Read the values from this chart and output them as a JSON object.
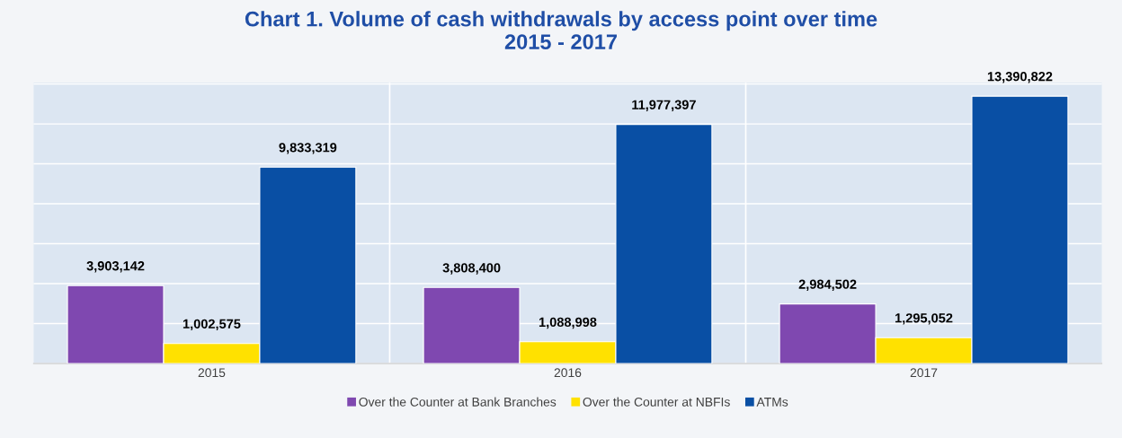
{
  "chart_data": {
    "type": "bar",
    "title": "Chart 1. Volume of cash withdrawals by access point over time\n2015 - 2017",
    "categories": [
      "2015",
      "2016",
      "2017"
    ],
    "series": [
      {
        "name": "Over the Counter at Bank Branches",
        "color": "#7f48b0",
        "values": [
          3903142,
          3808400,
          2984502
        ],
        "value_labels": [
          "3,903,142",
          "3,808,400",
          "2,984,502"
        ]
      },
      {
        "name": "Over the Counter at NBFIs",
        "color": "#ffe100",
        "values": [
          1002575,
          1088998,
          1295052
        ],
        "value_labels": [
          "1,002,575",
          "1,088,998",
          "1,295,052"
        ]
      },
      {
        "name": "ATMs",
        "color": "#094fa4",
        "values": [
          9833319,
          11977397,
          13390822
        ],
        "value_labels": [
          "9,833,319",
          "11,977,397",
          "13,390,822"
        ]
      }
    ],
    "tick_labels": "x",
    "grid": "y",
    "legend": "bottom"
  }
}
